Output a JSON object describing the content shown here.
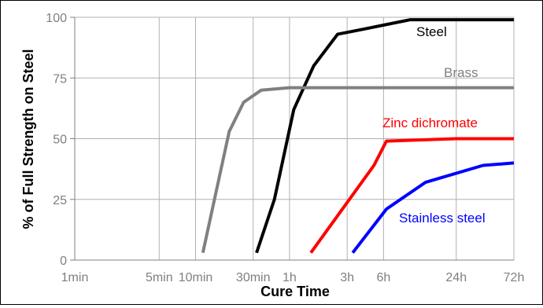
{
  "chart_data": {
    "type": "line",
    "xlabel": "Cure Time",
    "ylabel": "% of Full Strength on Steel",
    "x_scale": "log",
    "x_ticks": [
      "1min",
      "5min",
      "10min",
      "30min",
      "1h",
      "3h",
      "6h",
      "24h",
      "72h"
    ],
    "x_tick_minutes": [
      1,
      5,
      10,
      30,
      60,
      180,
      360,
      1440,
      4320
    ],
    "y_ticks": [
      "0",
      "25",
      "50",
      "75",
      "100"
    ],
    "ylim": [
      0,
      100
    ],
    "grid": true,
    "series": [
      {
        "name": "Steel",
        "color": "#000000",
        "x_minutes": [
          32,
          45,
          65,
          95,
          150,
          240,
          600,
          4320
        ],
        "values": [
          3,
          25,
          62,
          80,
          93,
          95,
          99,
          99
        ]
      },
      {
        "name": "Brass",
        "color": "#808080",
        "x_minutes": [
          11.5,
          19,
          25,
          35,
          60,
          120,
          600,
          4320
        ],
        "values": [
          3,
          53,
          65,
          70,
          71,
          71,
          71,
          71
        ]
      },
      {
        "name": "Zinc dichromate",
        "color": "#ff0000",
        "x_minutes": [
          90,
          300,
          380,
          1440,
          4320
        ],
        "values": [
          3,
          39,
          49,
          50,
          50
        ]
      },
      {
        "name": "Stainless steel",
        "color": "#0000ff",
        "x_minutes": [
          200,
          380,
          800,
          2400,
          4320
        ],
        "values": [
          3,
          21,
          32,
          39,
          40
        ]
      }
    ]
  }
}
